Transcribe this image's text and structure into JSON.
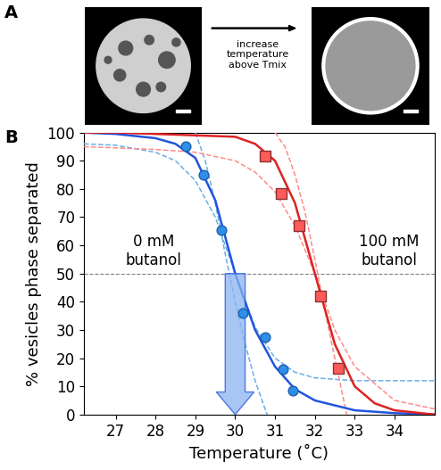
{
  "panel_labels": [
    "A",
    "B"
  ],
  "image_caption": "increase\ntemperature\nabove Tmix",
  "chart_data": {
    "type": "scatter",
    "xlabel": "Temperature (˚C)",
    "ylabel": "% vesicles phase separated",
    "xlim": [
      26.2,
      35
    ],
    "ylim": [
      0,
      100
    ],
    "xticks": [
      27,
      28,
      29,
      30,
      31,
      32,
      33,
      34
    ],
    "yticks": [
      0,
      10,
      20,
      30,
      40,
      50,
      60,
      70,
      80,
      90,
      100
    ],
    "reference_line": 50,
    "arrow_x": 30,
    "annotations": [
      "0 mM\nbutanol",
      "100 mM\nbutanol"
    ],
    "series": [
      {
        "type": "line",
        "color": "#6aaee8",
        "line_style": "dashed",
        "x": [
          26.2,
          27,
          28,
          28.5,
          29,
          29.5,
          30,
          30.5,
          31,
          31.5,
          32,
          33,
          34,
          35
        ],
        "values": [
          96,
          95.5,
          93,
          90,
          83,
          70,
          50,
          31,
          20,
          15,
          13,
          12,
          12,
          12
        ]
      },
      {
        "type": "line",
        "color": "#6aaee8",
        "line_style": "dashed",
        "x": [
          29.0,
          29.25,
          29.5,
          29.75,
          30,
          30.25,
          30.5,
          30.8
        ],
        "values": [
          100,
          90,
          75,
          57,
          40,
          25,
          12,
          0
        ]
      },
      {
        "type": "line",
        "color": "#ff8a8a",
        "line_style": "dashed",
        "x": [
          26.2,
          28,
          29,
          30,
          30.5,
          31,
          31.5,
          32,
          32.5,
          33,
          34,
          35
        ],
        "values": [
          95,
          94,
          93,
          90,
          86,
          79,
          67,
          50,
          30,
          17,
          5,
          2
        ]
      },
      {
        "type": "line",
        "color": "#ff8a8a",
        "line_style": "dashed",
        "x": [
          31.0,
          31.25,
          31.5,
          31.75,
          32,
          32.25,
          32.5,
          32.8
        ],
        "values": [
          100,
          95,
          85,
          72,
          55,
          37,
          20,
          0
        ]
      },
      {
        "type": "line",
        "color": "#2255dd",
        "line_style": "solid",
        "x": [
          26.2,
          27,
          28,
          28.5,
          29,
          29.5,
          30,
          30.5,
          31,
          31.5,
          32,
          33,
          34,
          35
        ],
        "values": [
          100,
          99.5,
          98,
          96,
          91,
          76,
          50,
          30,
          17,
          9,
          5,
          1.5,
          0.5,
          0
        ]
      },
      {
        "type": "line",
        "color": "#dd2222",
        "line_style": "solid",
        "x": [
          26.2,
          27,
          30,
          30.5,
          31,
          31.5,
          32,
          32.5,
          33,
          33.5,
          34,
          35
        ],
        "values": [
          100,
          100,
          98.5,
          96,
          90,
          75,
          50,
          25,
          10,
          4,
          1.5,
          0
        ]
      },
      {
        "type": "scatter",
        "color": "#2f8fe8",
        "marker": "circle",
        "x": [
          28.75,
          29.2,
          29.65,
          30.2,
          30.75,
          31.2,
          31.45
        ],
        "values": [
          95,
          85,
          65.5,
          36,
          27.5,
          16,
          8.5
        ]
      },
      {
        "type": "scatter",
        "color": "#ff5a5a",
        "marker": "square",
        "x": [
          30.75,
          31.15,
          31.6,
          32.15,
          32.6
        ],
        "values": [
          91.5,
          78.5,
          67,
          42,
          16.5
        ]
      }
    ]
  }
}
